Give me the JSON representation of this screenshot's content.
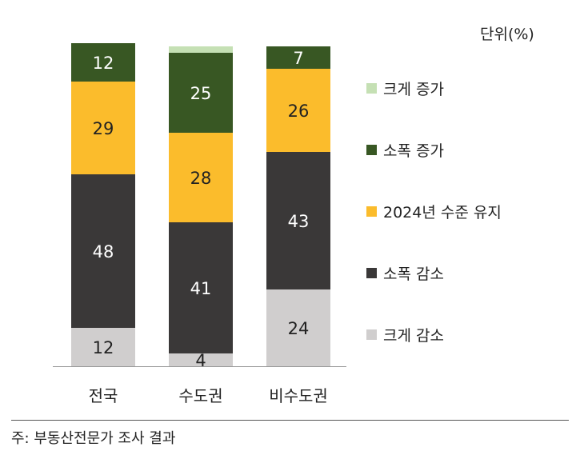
{
  "unit": "단위(%)",
  "source": "주: 부동산전문가 조사 결과",
  "colors": {
    "크게 증가": "#c5e0b4",
    "소폭 증가": "#385723",
    "2024년 수준 유지": "#fbbc2c",
    "소폭 감소": "#3a3838",
    "크게 감소": "#d0cece"
  },
  "chart_data": {
    "type": "bar",
    "stacked": true,
    "orientation": "vertical",
    "categories": [
      "전국",
      "수도권",
      "비수도권"
    ],
    "series": [
      {
        "name": "크게 감소",
        "values": [
          12,
          4,
          24
        ]
      },
      {
        "name": "소폭 감소",
        "values": [
          48,
          41,
          43
        ]
      },
      {
        "name": "2024년 수준 유지",
        "values": [
          29,
          28,
          26
        ]
      },
      {
        "name": "소폭 증가",
        "values": [
          12,
          25,
          7
        ]
      },
      {
        "name": "크게 증가",
        "values": [
          0,
          2,
          0
        ]
      }
    ],
    "data_labels": [
      [
        "12",
        "4",
        "24"
      ],
      [
        "48",
        "41",
        "43"
      ],
      [
        "29",
        "28",
        "26"
      ],
      [
        "12",
        "25",
        "7"
      ],
      [
        "",
        "",
        ""
      ]
    ],
    "legend_order": [
      "크게 증가",
      "소폭 증가",
      "2024년 수준 유지",
      "소폭 감소",
      "크게 감소"
    ],
    "legend_position": "right",
    "ylim": [
      0,
      100
    ],
    "grid": false
  }
}
